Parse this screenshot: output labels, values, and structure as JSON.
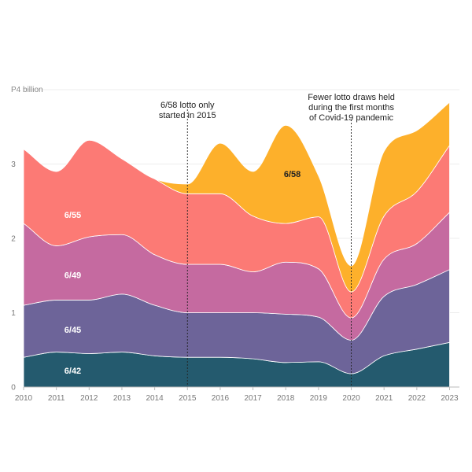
{
  "chart_data": {
    "type": "area",
    "stacked": true,
    "smooth": true,
    "y_unit_label": "P4 billion",
    "x": [
      2010,
      2011,
      2012,
      2013,
      2014,
      2015,
      2016,
      2017,
      2018,
      2019,
      2020,
      2021,
      2022,
      2023
    ],
    "x_tick_labels": [
      "2010",
      "2011",
      "2012",
      "2013",
      "2014",
      "2015",
      "2016",
      "2017",
      "2018",
      "2019",
      "2020",
      "2021",
      "2022",
      "2023"
    ],
    "y_ticks": [
      0,
      1,
      2,
      3
    ],
    "ylim": [
      0,
      4
    ],
    "xlim": [
      2010,
      2023.3
    ],
    "grid": "horizontal-only",
    "series": [
      {
        "name": "6/42",
        "color": "#245a6e",
        "label_color": "#ffffff",
        "values": [
          0.4,
          0.47,
          0.45,
          0.47,
          0.42,
          0.4,
          0.4,
          0.38,
          0.33,
          0.34,
          0.18,
          0.42,
          0.51,
          0.6
        ]
      },
      {
        "name": "6/45",
        "color": "#6d6499",
        "label_color": "#ffffff",
        "values": [
          0.7,
          0.7,
          0.72,
          0.78,
          0.68,
          0.6,
          0.6,
          0.62,
          0.65,
          0.6,
          0.45,
          0.8,
          0.87,
          0.98
        ]
      },
      {
        "name": "6/49",
        "color": "#c56aa0",
        "label_color": "#ffffff",
        "values": [
          1.1,
          0.73,
          0.85,
          0.8,
          0.68,
          0.65,
          0.65,
          0.55,
          0.7,
          0.65,
          0.3,
          0.5,
          0.55,
          0.77
        ]
      },
      {
        "name": "6/55",
        "color": "#fc7a75",
        "label_color": "#ffffff",
        "values": [
          1.0,
          1.0,
          1.3,
          1.02,
          1.02,
          0.95,
          0.95,
          0.75,
          0.52,
          0.7,
          0.35,
          0.58,
          0.7,
          0.9
        ]
      },
      {
        "name": "6/58",
        "color": "#fdb02b",
        "label_color": "#222222",
        "values": [
          0,
          0,
          0,
          0,
          0,
          0.13,
          0.68,
          0.6,
          1.32,
          0.55,
          0.35,
          0.87,
          0.82,
          0.58
        ]
      }
    ],
    "series_labels": [
      {
        "series": "6/42",
        "x": 2011.5,
        "y": 0.22
      },
      {
        "series": "6/45",
        "x": 2011.5,
        "y": 0.77
      },
      {
        "series": "6/49",
        "x": 2011.5,
        "y": 1.51
      },
      {
        "series": "6/55",
        "x": 2011.5,
        "y": 2.32
      },
      {
        "series": "6/58",
        "x": 2018.2,
        "y": 2.87
      }
    ],
    "annotations": [
      {
        "x": 2015,
        "lines": [
          "6/58 lotto only",
          "started in 2015"
        ]
      },
      {
        "x": 2020,
        "lines": [
          "Fewer lotto draws held",
          "during the first months",
          "of Covid-19 pandemic"
        ]
      }
    ]
  }
}
